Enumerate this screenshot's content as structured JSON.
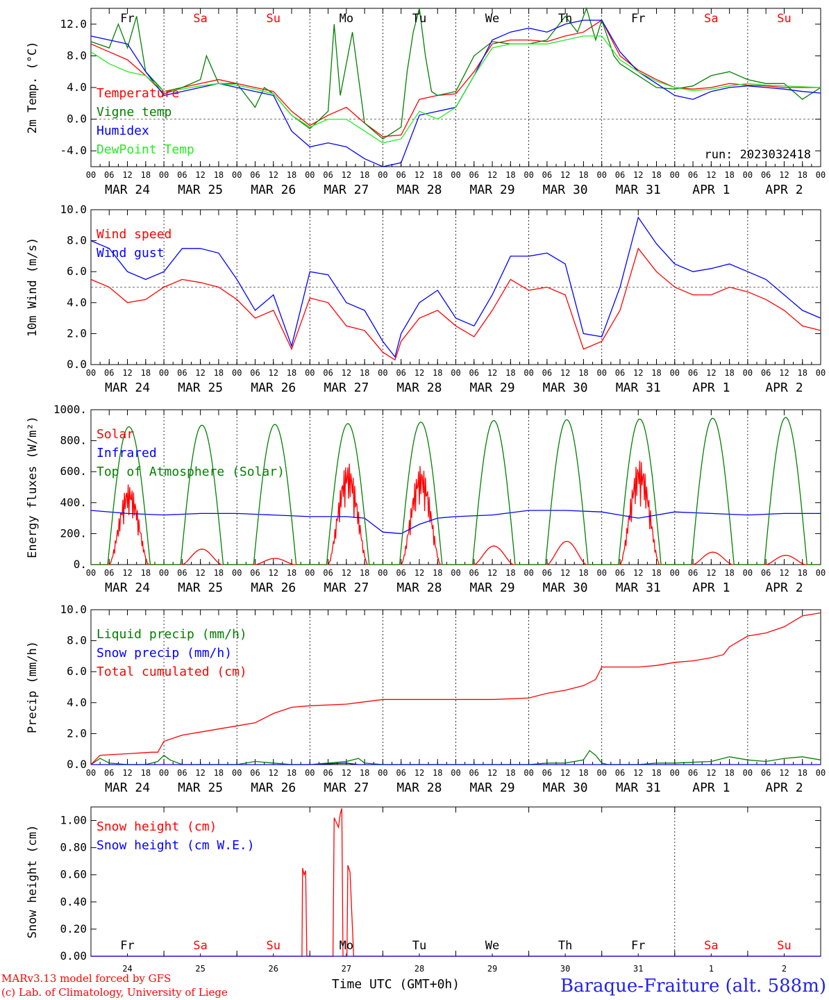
{
  "days_top": [
    {
      "label": "Fr",
      "color": "#000000"
    },
    {
      "label": "Sa",
      "color": "#ff0000"
    },
    {
      "label": "Su",
      "color": "#ff0000"
    },
    {
      "label": "Mo",
      "color": "#000000"
    },
    {
      "label": "Tu",
      "color": "#000000"
    },
    {
      "label": "We",
      "color": "#000000"
    },
    {
      "label": "Th",
      "color": "#000000"
    },
    {
      "label": "Fr",
      "color": "#000000"
    },
    {
      "label": "Sa",
      "color": "#ff0000"
    },
    {
      "label": "Su",
      "color": "#ff0000"
    }
  ],
  "date_labels": [
    "MAR 24",
    "MAR 25",
    "MAR 26",
    "MAR 27",
    "MAR 28",
    "MAR 29",
    "MAR 30",
    "MAR 31",
    "APR  1",
    "APR  2"
  ],
  "hour_labels": [
    "00",
    "06",
    "12",
    "18"
  ],
  "day_numbers": [
    "24",
    "25",
    "26",
    "27",
    "28",
    "29",
    "30",
    "31",
    "1",
    "2"
  ],
  "run_label": "run: 2023032418",
  "footer": {
    "model": "MARv3.13 model forced by GFS",
    "lab": "(c) Lab. of Climatology, University of Liege",
    "axis_title": "Time UTC (GMT+0h)",
    "station": "Baraque-Fraiture (alt. 588m)"
  },
  "chart_data": [
    {
      "type": "line",
      "ylabel": "2m Temp. (°C)",
      "ylim": [
        -6,
        14
      ],
      "yticks": [
        "12.0",
        "8.0",
        "4.0",
        "0.0",
        "-4.0"
      ],
      "x_unit": "hours since MAR 24 00 UTC",
      "series": [
        {
          "name": "Temperature",
          "color": "#ff0000",
          "x": [
            0,
            6,
            12,
            18,
            24,
            30,
            36,
            42,
            48,
            54,
            60,
            66,
            72,
            78,
            84,
            90,
            96,
            102,
            108,
            114,
            120,
            126,
            132,
            138,
            144,
            150,
            156,
            162,
            168,
            174,
            180,
            186,
            192,
            198,
            204,
            210,
            216,
            222,
            228,
            234,
            240
          ],
          "y": [
            9.5,
            8.5,
            7.5,
            5.5,
            3.2,
            4.0,
            4.5,
            5.0,
            4.5,
            4.0,
            3.5,
            1.0,
            -0.8,
            0.5,
            1.5,
            -0.5,
            -2.2,
            -2.0,
            2.5,
            3.0,
            3.2,
            6.0,
            9.5,
            10.0,
            10.0,
            9.8,
            10.5,
            11.0,
            12.5,
            8.0,
            6.2,
            5.0,
            4.0,
            3.8,
            4.0,
            4.5,
            4.3,
            4.2,
            4.0,
            4.0,
            4.0
          ]
        },
        {
          "name": "Vigne temp",
          "color": "#008000",
          "x": [
            0,
            6,
            9,
            12,
            15,
            18,
            24,
            30,
            36,
            38,
            42,
            48,
            54,
            57,
            60,
            66,
            72,
            78,
            80,
            82,
            86,
            90,
            96,
            102,
            104,
            106,
            108,
            110,
            112,
            114,
            120,
            126,
            132,
            138,
            144,
            150,
            156,
            160,
            163,
            166,
            168,
            172,
            174,
            180,
            186,
            192,
            198,
            204,
            210,
            216,
            222,
            228,
            234,
            240
          ],
          "y": [
            9.8,
            9.0,
            12.0,
            9.0,
            13.0,
            6.0,
            3.5,
            4.0,
            5.0,
            8.0,
            4.5,
            4.5,
            1.5,
            4.0,
            3.2,
            0.5,
            -1.2,
            1.0,
            12.0,
            3.0,
            11.0,
            -0.5,
            -2.5,
            -1.0,
            6.0,
            11.0,
            14.0,
            8.0,
            3.5,
            3.0,
            3.5,
            8.0,
            9.8,
            9.5,
            9.5,
            10.0,
            13.0,
            11.0,
            14.0,
            10.0,
            12.5,
            8.0,
            7.0,
            5.5,
            4.0,
            3.8,
            4.2,
            5.5,
            6.0,
            5.0,
            4.5,
            4.5,
            2.5,
            4.0
          ]
        },
        {
          "name": "Humidex",
          "color": "#0000ff",
          "x": [
            0,
            6,
            12,
            18,
            24,
            30,
            36,
            42,
            48,
            54,
            60,
            66,
            72,
            78,
            84,
            90,
            96,
            102,
            108,
            114,
            120,
            126,
            132,
            138,
            144,
            150,
            156,
            162,
            168,
            174,
            180,
            186,
            192,
            198,
            204,
            210,
            216,
            222,
            228,
            234,
            240
          ],
          "y": [
            10.5,
            10.0,
            9.5,
            6.0,
            3.0,
            3.5,
            4.0,
            4.5,
            4.0,
            3.5,
            3.0,
            -1.5,
            -3.5,
            -3.0,
            -3.5,
            -5.0,
            -6.0,
            -5.5,
            0.5,
            1.0,
            1.5,
            5.5,
            10.0,
            11.0,
            11.5,
            11.0,
            12.0,
            12.5,
            12.5,
            8.5,
            6.0,
            4.5,
            3.0,
            2.5,
            3.5,
            4.0,
            4.2,
            4.0,
            3.8,
            3.5,
            3.3
          ]
        },
        {
          "name": "DewPoint Temp",
          "color": "#22ee22",
          "x": [
            0,
            6,
            12,
            18,
            24,
            30,
            36,
            42,
            48,
            54,
            60,
            66,
            72,
            78,
            84,
            90,
            96,
            102,
            108,
            114,
            120,
            126,
            132,
            138,
            144,
            150,
            156,
            162,
            168,
            174,
            180,
            186,
            192,
            198,
            204,
            210,
            216,
            222,
            228,
            234,
            240
          ],
          "y": [
            8.5,
            7.0,
            6.0,
            5.5,
            3.5,
            3.8,
            4.2,
            4.5,
            4.3,
            3.8,
            3.2,
            0.5,
            -1.0,
            0.0,
            0.0,
            -1.5,
            -3.0,
            -2.5,
            1.0,
            0.0,
            1.5,
            5.5,
            9.0,
            9.5,
            9.5,
            9.5,
            10.0,
            10.5,
            10.5,
            7.5,
            6.0,
            4.8,
            4.0,
            3.6,
            3.8,
            4.2,
            4.5,
            4.3,
            4.2,
            4.1,
            4.0
          ]
        }
      ],
      "reference_line": 0.0
    },
    {
      "type": "line",
      "ylabel": "10m Wind (m/s)",
      "ylim": [
        0,
        10
      ],
      "yticks": [
        "10.0",
        "8.0",
        "6.0",
        "4.0",
        "2.0",
        "0.0"
      ],
      "x_unit": "hours since MAR 24 00 UTC",
      "series": [
        {
          "name": "Wind speed",
          "color": "#ff0000",
          "x": [
            0,
            6,
            12,
            18,
            24,
            30,
            36,
            42,
            48,
            54,
            60,
            66,
            72,
            78,
            84,
            90,
            96,
            100,
            102,
            108,
            114,
            120,
            126,
            132,
            138,
            144,
            150,
            156,
            162,
            168,
            174,
            180,
            186,
            192,
            198,
            204,
            210,
            216,
            222,
            228,
            234,
            240
          ],
          "y": [
            5.5,
            5.0,
            4.0,
            4.2,
            5.0,
            5.5,
            5.3,
            5.0,
            4.2,
            3.0,
            3.5,
            1.0,
            4.3,
            4.0,
            2.5,
            2.2,
            0.8,
            0.3,
            1.5,
            3.0,
            3.5,
            2.5,
            1.8,
            3.5,
            5.5,
            4.8,
            5.0,
            4.5,
            1.0,
            1.5,
            3.5,
            7.5,
            6.0,
            5.0,
            4.5,
            4.5,
            5.0,
            4.7,
            4.2,
            3.5,
            2.5,
            2.2
          ]
        },
        {
          "name": "Wind gust",
          "color": "#0000ff",
          "x": [
            0,
            6,
            12,
            18,
            24,
            30,
            36,
            42,
            48,
            54,
            60,
            66,
            72,
            78,
            84,
            90,
            96,
            100,
            102,
            108,
            114,
            120,
            126,
            132,
            138,
            144,
            150,
            156,
            162,
            168,
            174,
            180,
            186,
            192,
            198,
            204,
            210,
            216,
            222,
            228,
            234,
            240
          ],
          "y": [
            8.0,
            7.5,
            6.0,
            5.5,
            6.0,
            7.5,
            7.5,
            7.2,
            5.5,
            3.5,
            4.5,
            1.2,
            6.0,
            5.8,
            4.0,
            3.5,
            1.5,
            0.5,
            2.0,
            4.0,
            4.8,
            3.0,
            2.5,
            4.5,
            7.0,
            7.0,
            7.2,
            6.5,
            2.0,
            1.8,
            5.0,
            9.5,
            7.8,
            6.5,
            6.0,
            6.2,
            6.5,
            6.0,
            5.5,
            4.5,
            3.5,
            3.0
          ]
        }
      ],
      "reference_line": 5.0
    },
    {
      "type": "line",
      "ylabel": "Energy fluxes (W/m²)",
      "ylim": [
        0,
        1000
      ],
      "yticks": [
        "1000.",
        "800.",
        "600.",
        "400.",
        "200.",
        "0."
      ],
      "x_unit": "hours since MAR 24 00 UTC",
      "series": [
        {
          "name": "Solar",
          "color": "#ff0000",
          "day_peaks": [
            520,
            100,
            40,
            660,
            640,
            120,
            150,
            680,
            80,
            60
          ]
        },
        {
          "name": "Infrared",
          "color": "#0000ff",
          "x": [
            0,
            12,
            24,
            36,
            48,
            60,
            72,
            84,
            90,
            96,
            102,
            108,
            114,
            120,
            132,
            144,
            156,
            168,
            180,
            192,
            204,
            216,
            228,
            240
          ],
          "y": [
            350,
            330,
            320,
            330,
            330,
            320,
            310,
            310,
            300,
            210,
            200,
            260,
            300,
            310,
            320,
            350,
            350,
            340,
            300,
            340,
            330,
            320,
            330,
            330
          ]
        },
        {
          "name": "Top of Atmosphere (Solar)",
          "color": "#008000",
          "day_peaks": [
            890,
            900,
            905,
            910,
            920,
            930,
            935,
            940,
            945,
            950
          ]
        }
      ]
    },
    {
      "type": "line",
      "ylabel": "Precip (mm/h)",
      "ylim": [
        0,
        10
      ],
      "yticks": [
        "10.0",
        "8.0",
        "6.0",
        "4.0",
        "2.0",
        "0.0"
      ],
      "x_unit": "hours since MAR 24 00 UTC",
      "series": [
        {
          "name": "Liquid precip (mm/h)",
          "color": "#008000",
          "x": [
            0,
            3,
            6,
            12,
            18,
            22,
            24,
            26,
            30,
            36,
            48,
            54,
            60,
            66,
            72,
            78,
            84,
            88,
            90,
            96,
            120,
            144,
            150,
            156,
            162,
            164,
            166,
            168,
            170,
            180,
            186,
            192,
            204,
            210,
            216,
            222,
            228,
            234,
            240
          ],
          "y": [
            0.0,
            0.4,
            0.1,
            0.0,
            0.0,
            0.2,
            0.6,
            0.3,
            0.0,
            0.0,
            0.0,
            0.2,
            0.1,
            0.0,
            0.0,
            0.1,
            0.2,
            0.4,
            0.1,
            0.0,
            0.0,
            0.0,
            0.1,
            0.1,
            0.3,
            0.9,
            0.6,
            0.1,
            0.0,
            0.0,
            0.1,
            0.1,
            0.2,
            0.5,
            0.3,
            0.2,
            0.4,
            0.5,
            0.3
          ]
        },
        {
          "name": "Snow precip (mm/h)",
          "color": "#0000ff",
          "x": [
            0,
            72,
            84,
            88,
            96,
            240
          ],
          "y": [
            0,
            0,
            0.1,
            0,
            0,
            0
          ]
        },
        {
          "name": "Total cumulated (cm)",
          "color": "#ff0000",
          "x": [
            0,
            3,
            12,
            20,
            22,
            24,
            30,
            36,
            42,
            48,
            54,
            60,
            66,
            72,
            84,
            96,
            120,
            132,
            144,
            150,
            156,
            162,
            166,
            168,
            174,
            180,
            186,
            192,
            198,
            204,
            208,
            210,
            216,
            222,
            228,
            234,
            240
          ],
          "y": [
            0.0,
            0.6,
            0.7,
            0.8,
            0.8,
            1.5,
            1.9,
            2.1,
            2.3,
            2.5,
            2.7,
            3.3,
            3.7,
            3.8,
            3.9,
            4.2,
            4.2,
            4.2,
            4.3,
            4.6,
            4.8,
            5.1,
            5.5,
            6.3,
            6.3,
            6.3,
            6.4,
            6.6,
            6.7,
            6.9,
            7.1,
            7.6,
            8.3,
            8.5,
            8.9,
            9.6,
            9.8
          ]
        }
      ]
    },
    {
      "type": "line",
      "ylabel": "Snow height (cm)",
      "ylim": [
        0,
        1.1
      ],
      "yticks": [
        "1.00",
        "0.80",
        "0.60",
        "0.40",
        "0.20",
        "0.00"
      ],
      "x_unit": "hours since MAR 24 00 UTC",
      "series": [
        {
          "name": "Snow height (cm)",
          "color": "#ff0000",
          "x": [
            0,
            69.4,
            69.6,
            70.1,
            70.6,
            71.0,
            79.6,
            80.0,
            81.4,
            82.0,
            82.5,
            82.9,
            84.2,
            84.5,
            85.2,
            86.4,
            240
          ],
          "y": [
            0,
            0,
            0.65,
            0.6,
            0.63,
            0,
            0,
            1.02,
            0.95,
            1.05,
            1.09,
            0,
            0,
            0.67,
            0.62,
            0,
            0
          ]
        },
        {
          "name": "Snow height (cm W.E.)",
          "color": "#0000ff",
          "x": [
            0,
            240
          ],
          "y": [
            0,
            0
          ]
        }
      ]
    }
  ]
}
